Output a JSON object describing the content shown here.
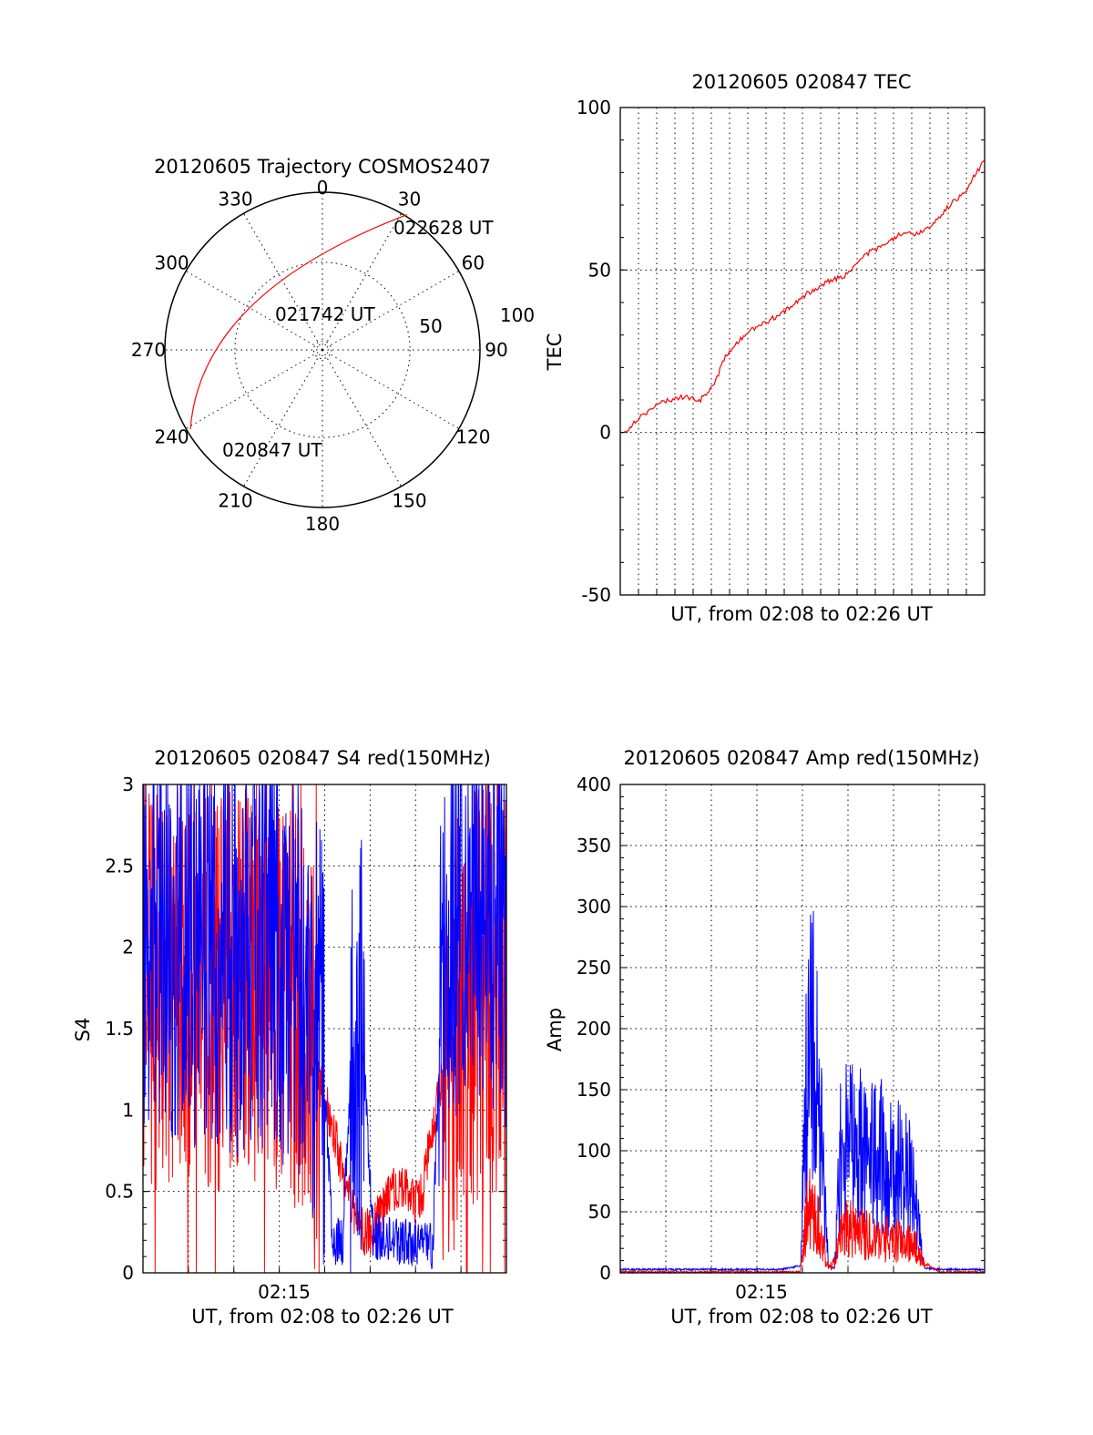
{
  "figure": {
    "date": "20120605"
  },
  "chart_data": [
    {
      "id": "trajectory",
      "type": "polar-trajectory",
      "title": "20120605 Trajectory COSMOS2407",
      "azimuth_labels": [
        "0",
        "30",
        "60",
        "90",
        "120",
        "150",
        "180",
        "210",
        "240",
        "270",
        "300",
        "330"
      ],
      "azimuth_values": [
        0,
        30,
        60,
        90,
        120,
        150,
        180,
        210,
        240,
        270,
        300,
        330
      ],
      "radial_labels": [
        "50",
        "100"
      ],
      "annotations": [
        {
          "text": "022628 UT"
        },
        {
          "text": "021742 UT"
        },
        {
          "text": "020847 UT"
        }
      ],
      "track": [
        {
          "time": "020847 UT",
          "azimuth": 239,
          "zenith": 88
        },
        {
          "time": "021742 UT",
          "azimuth": 300,
          "zenith": 48
        },
        {
          "time": "022628 UT",
          "azimuth": 32,
          "zenith": 91
        }
      ],
      "track_color": "#ff0000"
    },
    {
      "id": "tec",
      "type": "line",
      "title": "20120605 020847 TEC",
      "xlabel": "UT, from 02:08 to 02:26 UT",
      "ylabel": "TEC",
      "ylim": [
        -50,
        100
      ],
      "yticks": [
        "-50",
        "0",
        "50",
        "100"
      ],
      "xlim_minutes": [
        0,
        18.2
      ],
      "grid": true,
      "series": [
        {
          "color": "#ff0000",
          "x": [
            0.2,
            1.0,
            2.0,
            3.0,
            4.0,
            4.7,
            5.3,
            6.4,
            7.3,
            8.4,
            9.4,
            10.5,
            11.2,
            12.3,
            13.3,
            14.0,
            14.7,
            15.4,
            16.5,
            17.3,
            18.2
          ],
          "y": [
            0,
            5,
            9,
            11,
            10,
            15,
            24,
            31,
            34,
            38,
            43,
            47,
            48,
            55,
            58,
            61,
            61,
            63,
            70,
            75,
            84
          ]
        }
      ]
    },
    {
      "id": "s4",
      "type": "line",
      "title": "20120605 020847 S4 red(150MHz)",
      "xlabel": "UT, from 02:08 to 02:26 UT",
      "ylabel": "S4",
      "ylim": [
        0,
        3
      ],
      "yticks": [
        "0",
        "0.5",
        "1",
        "1.5",
        "2",
        "2.5",
        "3"
      ],
      "xtick_label": "02:15",
      "xlim_minutes": [
        0,
        18.2
      ],
      "grid": true,
      "series": [
        {
          "color": "#ff0000",
          "x": [
            0,
            1,
            2,
            3,
            4,
            5,
            6,
            7,
            8,
            8.5,
            9,
            9.5,
            10,
            10.5,
            11,
            11.5,
            12,
            12.5,
            13,
            13.5,
            14,
            14.5,
            15,
            15.5,
            16,
            17,
            18.2
          ],
          "y": [
            1.7,
            1.8,
            1.85,
            1.8,
            1.75,
            1.8,
            1.85,
            1.75,
            1.6,
            1.3,
            1.1,
            0.9,
            0.6,
            0.4,
            0.25,
            0.25,
            0.4,
            0.5,
            0.55,
            0.45,
            0.5,
            0.9,
            1.2,
            1.4,
            1.6,
            1.7,
            1.8
          ]
        },
        {
          "color": "#0000ff",
          "x": [
            0,
            1,
            2,
            3,
            4,
            5,
            6,
            7,
            8,
            8.5,
            9,
            9.5,
            10,
            10.5,
            11,
            11.5,
            12,
            12.5,
            13,
            13.5,
            14,
            14.5,
            15,
            15.5,
            16,
            17,
            18.2
          ],
          "y": [
            2.2,
            2.1,
            2.0,
            2.1,
            1.95,
            2.0,
            2.05,
            1.95,
            1.8,
            1.6,
            1.4,
            0.2,
            0.18,
            1.5,
            1.4,
            0.25,
            0.2,
            0.2,
            0.2,
            0.18,
            0.18,
            0.15,
            1.8,
            2.2,
            2.3,
            2.4,
            2.1
          ]
        }
      ]
    },
    {
      "id": "amp",
      "type": "line",
      "title": "20120605 020847 Amp red(150MHz)",
      "xlabel": "UT, from 02:08 to 02:26 UT",
      "ylabel": "Amp",
      "ylim": [
        0,
        400
      ],
      "yticks": [
        "0",
        "50",
        "100",
        "150",
        "200",
        "250",
        "300",
        "350",
        "400"
      ],
      "xtick_label": "02:15",
      "xlim_minutes": [
        0,
        18.2
      ],
      "grid": true,
      "series": [
        {
          "color": "#0000ff",
          "x": [
            0,
            2,
            4,
            6,
            8,
            9.0,
            9.3,
            9.6,
            10.0,
            10.4,
            10.7,
            11.0,
            11.5,
            12.0,
            12.5,
            13.0,
            13.5,
            14.0,
            14.5,
            14.8,
            15.2,
            16,
            18.2
          ],
          "y": [
            2,
            2,
            2,
            2,
            2,
            5,
            180,
            230,
            150,
            5,
            3,
            120,
            130,
            125,
            120,
            115,
            110,
            100,
            95,
            60,
            3,
            2,
            2
          ]
        },
        {
          "color": "#ff0000",
          "x": [
            0,
            8,
            9.0,
            9.3,
            9.6,
            10.0,
            10.4,
            10.7,
            11.0,
            11.5,
            12.0,
            12.5,
            13.0,
            13.5,
            14.0,
            14.5,
            14.8,
            15.2,
            15.6,
            16,
            18.2
          ],
          "y": [
            0,
            0,
            0,
            60,
            70,
            40,
            5,
            10,
            40,
            45,
            40,
            35,
            30,
            35,
            30,
            28,
            25,
            8,
            3,
            0,
            0
          ]
        }
      ]
    }
  ]
}
